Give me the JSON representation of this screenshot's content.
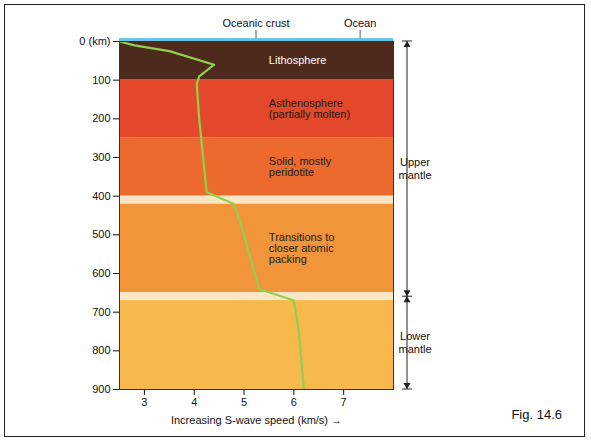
{
  "chart_data": {
    "type": "line",
    "xlabel": "Increasing S-wave speed (km/s) →",
    "xlim": [
      2.5,
      8
    ],
    "xticks": [
      3,
      4,
      5,
      6,
      7
    ],
    "ylim": [
      0,
      900
    ],
    "yticks": [
      {
        "value": 0,
        "label": "0 (km)"
      },
      100,
      200,
      300,
      400,
      500,
      600,
      700,
      800,
      900
    ],
    "grid": false,
    "series": [
      {
        "color": "#8ed14a",
        "x": [
          2.5,
          2.8,
          3.5,
          4.4,
          4.1,
          4.05,
          4.1,
          4.25,
          4.8,
          5.0,
          5.3,
          6.0,
          6.1,
          6.2
        ],
        "y": [
          0,
          10,
          25,
          60,
          90,
          110,
          200,
          390,
          420,
          500,
          640,
          670,
          750,
          900
        ]
      }
    ],
    "layers": [
      {
        "top": 0,
        "bottom": 100,
        "color": "#4e2a1c",
        "label": "Lithosphere",
        "label_color": "#ffffff"
      },
      {
        "top": 100,
        "bottom": 250,
        "color": "#e4482b",
        "label": "Asthenosphere (partially molten)",
        "label_color": "#1a1a1a"
      },
      {
        "top": 250,
        "bottom": 400,
        "color": "#ec6a2d",
        "label": "Solid, mostly peridotite",
        "label_color": "#1a1a1a"
      },
      {
        "top": 420,
        "bottom": 650,
        "color": "#f2953a"
      },
      {
        "top": 670,
        "bottom": 900,
        "color": "#f7b84c"
      }
    ],
    "transitions": {
      "label": "Transitions to closer atomic packing",
      "color": "#fbe7c6",
      "bands": [
        {
          "top": 400,
          "bottom": 420
        },
        {
          "top": 650,
          "bottom": 670
        }
      ]
    },
    "surface": {
      "crust_label": "Oceanic crust",
      "ocean_label": "Ocean",
      "ocean_color": "#6ec3e8"
    },
    "divisions": [
      {
        "label": "Upper mantle",
        "top": 0,
        "bottom": 660
      },
      {
        "label": "Lower mantle",
        "top": 660,
        "bottom": 900
      }
    ],
    "caption": "Fig. 14.6"
  }
}
